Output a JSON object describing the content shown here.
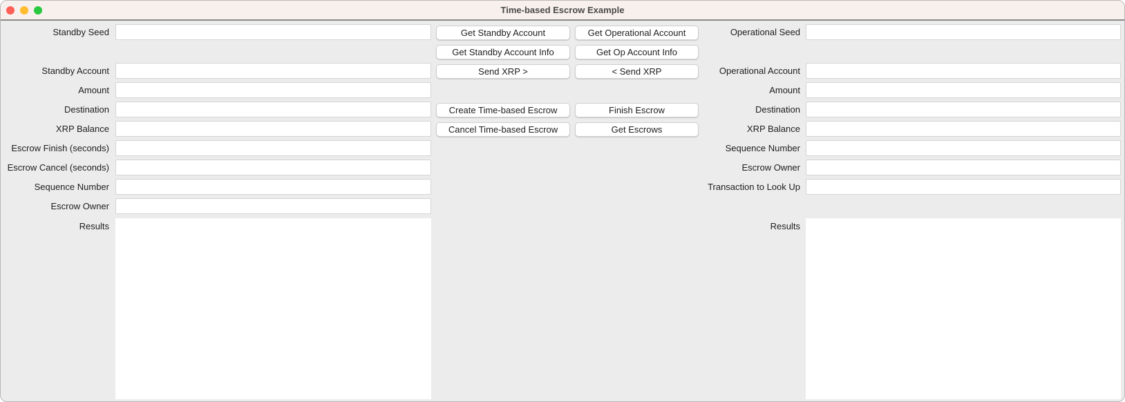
{
  "window": {
    "title": "Time-based Escrow Example"
  },
  "standby": {
    "labels": [
      "Standby Seed",
      "Standby Account",
      "Amount",
      "Destination",
      "XRP Balance",
      "Escrow Finish (seconds)",
      "Escrow Cancel (seconds)",
      "Sequence Number",
      "Escrow Owner",
      "Results"
    ],
    "values": [
      "",
      "",
      "",
      "",
      "",
      "",
      "",
      "",
      ""
    ]
  },
  "operational": {
    "labels": [
      "Operational Seed",
      "Operational Account",
      "Amount",
      "Destination",
      "XRP Balance",
      "Sequence Number",
      "Escrow Owner",
      "Transaction to Look Up",
      "Results"
    ],
    "values": [
      "",
      "",
      "",
      "",
      "",
      "",
      "",
      ""
    ]
  },
  "buttons": {
    "get_standby_account": "Get Standby Account",
    "get_operational_account": "Get Operational Account",
    "get_standby_account_info": "Get Standby Account Info",
    "get_op_account_info": "Get Op Account Info",
    "send_xrp_to_op": "Send XRP >",
    "send_xrp_to_standby": "< Send XRP",
    "create_escrow": "Create Time-based Escrow",
    "finish_escrow": "Finish Escrow",
    "cancel_escrow": "Cancel Time-based Escrow",
    "get_escrows": "Get Escrows"
  },
  "colors": {
    "close": "#fe5f57",
    "minimize": "#febc2e",
    "zoom": "#28c840"
  }
}
